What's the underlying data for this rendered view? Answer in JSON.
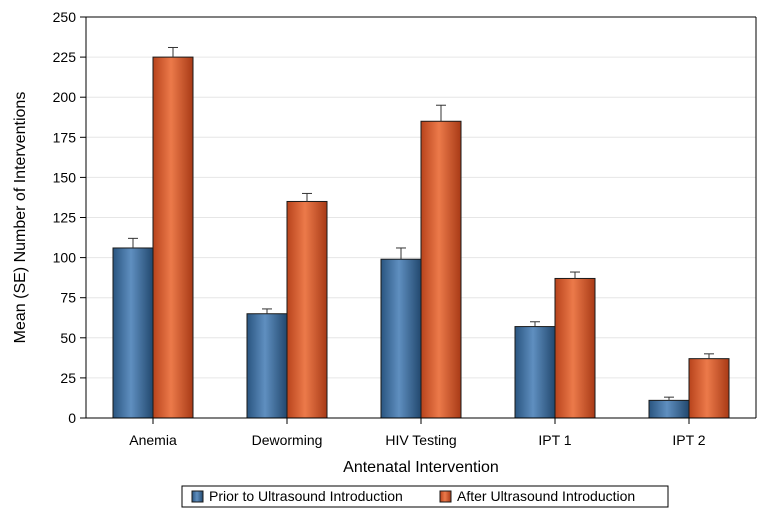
{
  "chart_data": {
    "type": "bar",
    "title": "",
    "xlabel": "Antenatal Intervention",
    "ylabel": "Mean (SE) Number of Interventions",
    "ylim": [
      0,
      250
    ],
    "yticks": [
      0,
      25,
      50,
      75,
      100,
      125,
      150,
      175,
      200,
      225,
      250
    ],
    "grid": true,
    "legend_placement": "bottom",
    "categories": [
      "Anemia",
      "Deworming",
      "HIV Testing",
      "IPT 1",
      "IPT 2"
    ],
    "series": [
      {
        "name": "Prior to Ultrasound Introduction",
        "color": "#3a6f9f",
        "values": [
          106,
          65,
          99,
          57,
          11
        ],
        "se": [
          6,
          3,
          7,
          3,
          2
        ]
      },
      {
        "name": "After Ultrasound Introduction",
        "color": "#d8582c",
        "values": [
          225,
          135,
          185,
          87,
          37
        ],
        "se": [
          6,
          5,
          10,
          4,
          3
        ]
      }
    ]
  }
}
